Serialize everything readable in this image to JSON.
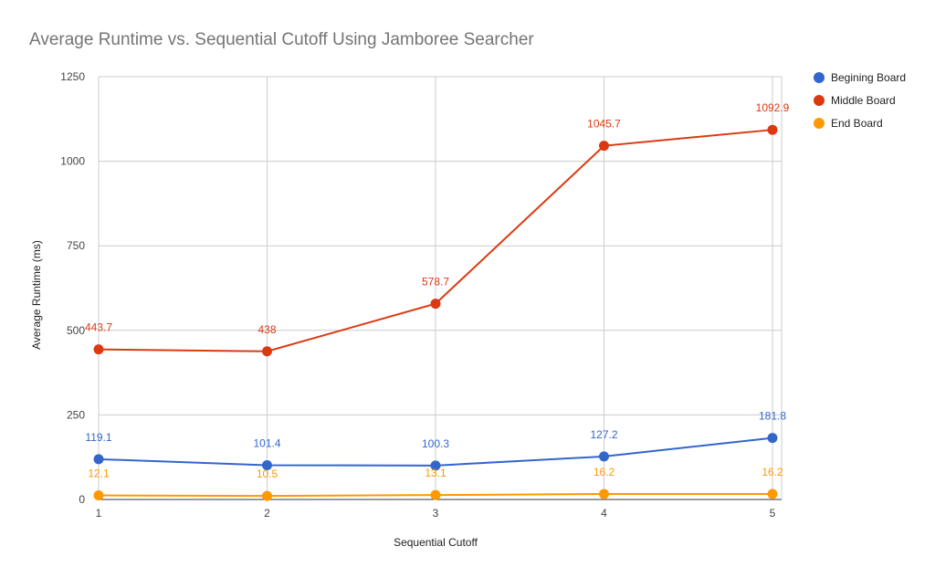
{
  "chart_data": {
    "type": "line",
    "title": "Average Runtime vs. Sequential Cutoff Using Jamboree Searcher",
    "xlabel": "Sequential Cutoff",
    "ylabel": "Average Runtime (ms)",
    "x": [
      1,
      2,
      3,
      4,
      5
    ],
    "ylim": [
      0,
      1250
    ],
    "yticks": [
      0,
      250,
      500,
      750,
      1000,
      1250
    ],
    "grid": true,
    "legend_position": "right",
    "series": [
      {
        "name": "Begining Board",
        "color": "#3366cc",
        "values": [
          119.1,
          101.4,
          100.3,
          127.2,
          181.8
        ],
        "labels": [
          "119.1",
          "101.4",
          "100.3",
          "127.2",
          "181.8"
        ]
      },
      {
        "name": "Middle Board",
        "color": "#dc3912",
        "values": [
          443.7,
          438,
          578.7,
          1045.7,
          1092.9
        ],
        "labels": [
          "443.7",
          "438",
          "578.7",
          "1045.7",
          "1092.9"
        ]
      },
      {
        "name": "End Board",
        "color": "#ff9900",
        "values": [
          12.1,
          10.5,
          13.1,
          16.2,
          16.2
        ],
        "labels": [
          "12.1",
          "10.5",
          "13.1",
          "16.2",
          "16.2"
        ]
      }
    ]
  }
}
